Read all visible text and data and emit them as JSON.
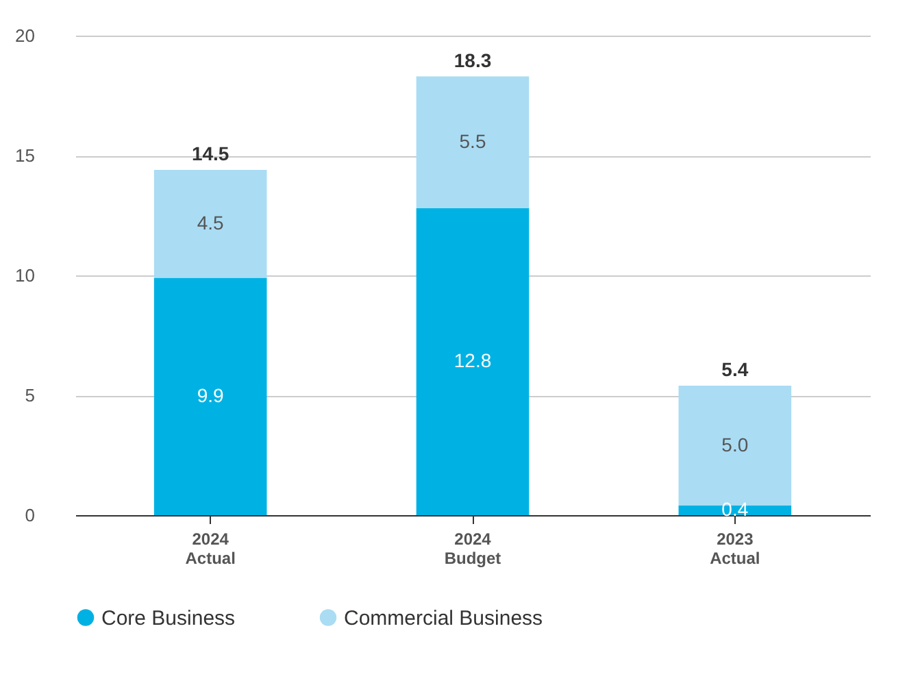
{
  "chart_data": {
    "type": "bar",
    "stacked": true,
    "categories": [
      "2024\nActual",
      "2024\nBudget",
      "2023\nActual"
    ],
    "series": [
      {
        "name": "Core Business",
        "color": "#00b2e3",
        "values": [
          9.9,
          12.8,
          0.4
        ],
        "value_labels": [
          "9.9",
          "12.8",
          "0.4"
        ]
      },
      {
        "name": "Commercial Business",
        "color": "#aadcf4",
        "values": [
          4.5,
          5.5,
          5.0
        ],
        "value_labels": [
          "4.5",
          "5.5",
          "5.0"
        ]
      }
    ],
    "totals": [
      "14.5",
      "18.3",
      "5.4"
    ],
    "ylim": [
      0,
      20
    ],
    "yticks": [
      0,
      5,
      10,
      15,
      20
    ],
    "grid": "y",
    "legend": "bottom left"
  }
}
